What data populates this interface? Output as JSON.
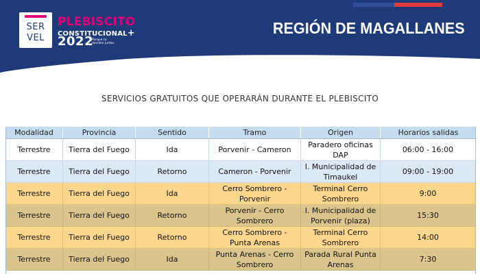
{
  "header": {
    "logo": {
      "line1": "SER",
      "line2": "VEL"
    },
    "campaign": {
      "line1": "PLEBISCITO",
      "line2": "CONSTITUCIONAL",
      "plus": "+",
      "year": "2022",
      "tagline": "Porque tú decides juntos"
    },
    "region": "REGIÓN DE MAGALLANES",
    "colors": {
      "navy": "#1e3a78",
      "magenta": "#e2007a",
      "flag_blue": "#2f4f9a",
      "flag_red": "#e0393e"
    }
  },
  "subtitle": "SERVICIOS GRATUITOS QUE OPERARÁN DURANTE EL PLEBISCITO",
  "table": {
    "columns": [
      "Modalidad",
      "Provincia",
      "Sentido",
      "Tramo",
      "Origen",
      "Horarios salidas"
    ],
    "rows": [
      {
        "modalidad": "Terrestre",
        "provincia": "Tierra del Fuego",
        "sentido": "Ida",
        "tramo": "Porvenir - Cameron",
        "origen": "Paradero oficinas DAP",
        "horario": "06:00 - 16:00"
      },
      {
        "modalidad": "Terrestre",
        "provincia": "Tierra del Fuego",
        "sentido": "Retorno",
        "tramo": "Cameron - Porvenir",
        "origen": "I. Municipalidad de Timaukel",
        "horario": "09:00 - 19:00"
      },
      {
        "modalidad": "Terrestre",
        "provincia": "Tierra del Fuego",
        "sentido": "Ida",
        "tramo": "Cerro Sombrero - Porvenir",
        "origen": "Terminal Cerro Sombrero",
        "horario": "9:00"
      },
      {
        "modalidad": "Terrestre",
        "provincia": "Tierra del Fuego",
        "sentido": "Retorno",
        "tramo": "Porvenir - Cerro Sombrero",
        "origen": "I. Municipalidad de Porvenir (plaza)",
        "horario": "15:30"
      },
      {
        "modalidad": "Terrestre",
        "provincia": "Tierra del Fuego",
        "sentido": "Retorno",
        "tramo": "Cerro Sombrero - Punta Arenas",
        "origen": "Terminal Cerro Sombrero",
        "horario": "14:00"
      },
      {
        "modalidad": "Terrestre",
        "provincia": "Tierra del Fuego",
        "sentido": "Ida",
        "tramo": "Punta Arenas - Cerro Sombrero",
        "origen": "Parada Rural Punta Arenas",
        "horario": "7:30"
      }
    ]
  }
}
